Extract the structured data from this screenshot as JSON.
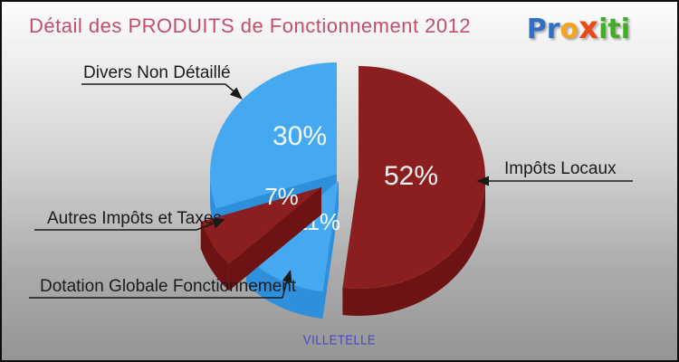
{
  "window": {
    "title": "Détail des PRODUITS de Fonctionnement 2012",
    "footer": "VILLETELLE"
  },
  "logo": {
    "name": "proxiti",
    "letters": [
      {
        "ch": "P",
        "color": "#2f6fc6"
      },
      {
        "ch": "r",
        "color": "#2f6fc6"
      },
      {
        "ch": "o",
        "color": "#f6a120"
      },
      {
        "ch": "x",
        "color": "#ea4814"
      },
      {
        "ch": "i",
        "color": "#44ab28"
      },
      {
        "ch": "t",
        "color": "#44ab28"
      },
      {
        "ch": "i",
        "color": "#44ab28"
      }
    ]
  },
  "chart_data": {
    "type": "pie",
    "style": "3d-exploded",
    "title": "Détail des PRODUITS de Fonctionnement 2012",
    "subtitle": "VILLETELLE",
    "unit": "%",
    "start_angle_clockwise_from_top": 0,
    "slices": [
      {
        "label": "Impôts Locaux",
        "value": 52,
        "pct_label": "52%",
        "color": "#8b1f1f",
        "side_color": "#6e1313"
      },
      {
        "label": "Dotation Globale Fonctionnement",
        "value": 11,
        "pct_label": "11%",
        "color": "#44a9f1",
        "side_color": "#2e8fdc"
      },
      {
        "label": "Autres Impôts et Taxes",
        "value": 7,
        "pct_label": "7%",
        "color": "#8b1f1f",
        "side_color": "#6e1313"
      },
      {
        "label": "Divers Non Détaillé",
        "value": 30,
        "pct_label": "30%",
        "color": "#44a9f1",
        "side_color": "#2e8fdc"
      }
    ]
  },
  "colors": {
    "title": "#c24e6b",
    "footer": "#4646cf",
    "background_top": "#fdfdfd",
    "background_bottom": "#959595",
    "label_text": "#1b1b1b"
  }
}
